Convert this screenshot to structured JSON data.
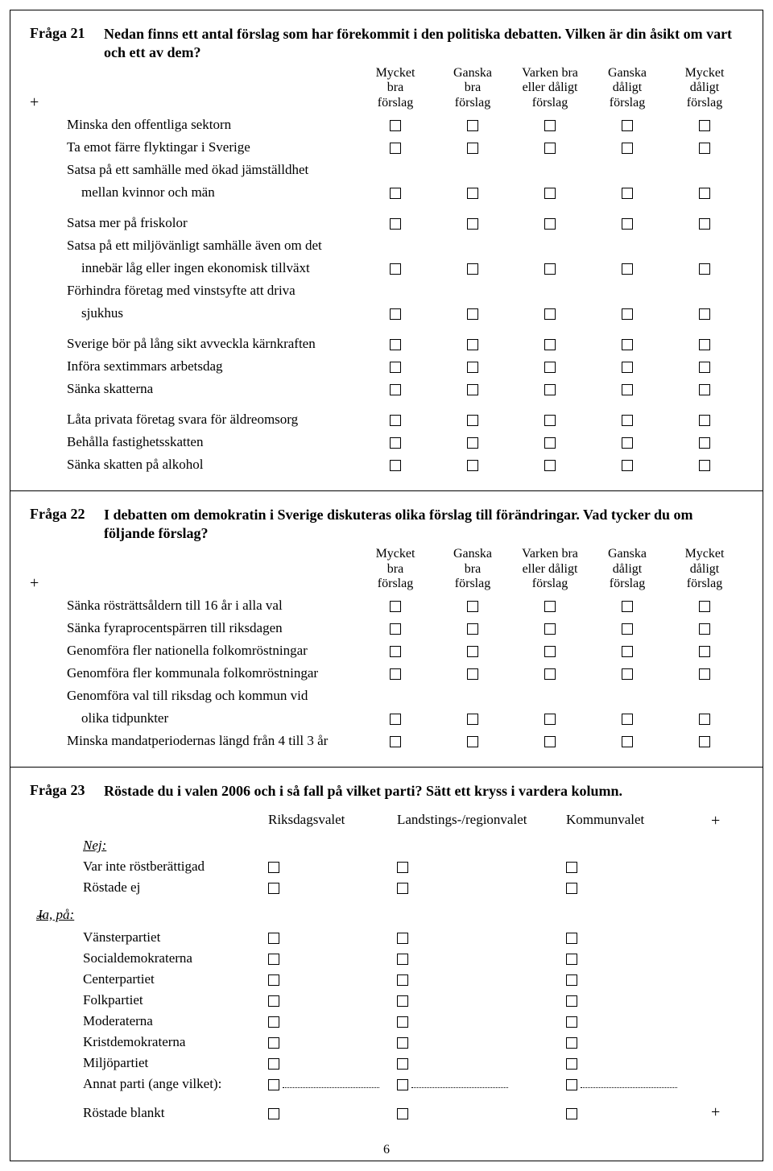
{
  "page_number": "6",
  "colors": {
    "border": "#000000",
    "background": "#ffffff",
    "text": "#000000"
  },
  "q21": {
    "label": "Fråga 21",
    "prompt": "Nedan finns ett antal förslag som har förekommit i den politiska debatten. Vilken är din åsikt om vart och ett av dem?",
    "headers": {
      "c1": "Mycket\nbra\nförslag",
      "c2": "Ganska\nbra\nförslag",
      "c3": "Varken bra\neller dåligt\nförslag",
      "c4": "Ganska\ndåligt\nförslag",
      "c5": "Mycket\ndåligt\nförslag"
    },
    "groups": [
      [
        {
          "text": "Minska den offentliga sektorn"
        },
        {
          "text": "Ta emot färre flyktingar i Sverige"
        },
        {
          "text_a": "Satsa på ett samhälle med ökad jämställdhet",
          "text_b": "mellan kvinnor och män"
        }
      ],
      [
        {
          "text": "Satsa mer på friskolor"
        },
        {
          "text_a": "Satsa på ett miljövänligt samhälle även om det",
          "text_b": "innebär låg eller ingen ekonomisk tillväxt"
        },
        {
          "text_a": "Förhindra företag med vinstsyfte att driva",
          "text_b": "sjukhus"
        }
      ],
      [
        {
          "text": "Sverige bör på lång sikt avveckla kärnkraften"
        },
        {
          "text": "Införa sextimmars arbetsdag"
        },
        {
          "text": "Sänka skatterna"
        }
      ],
      [
        {
          "text": "Låta privata företag svara för äldreomsorg"
        },
        {
          "text": "Behålla fastighetsskatten"
        },
        {
          "text": "Sänka skatten på alkohol"
        }
      ]
    ]
  },
  "q22": {
    "label": "Fråga 22",
    "prompt": "I debatten om demokratin i Sverige diskuteras olika förslag till förändringar. Vad tycker du om följande förslag?",
    "headers": {
      "c1": "Mycket\nbra\nförslag",
      "c2": "Ganska\nbra\nförslag",
      "c3": "Varken bra\neller dåligt\nförslag",
      "c4": "Ganska\ndåligt\nförslag",
      "c5": "Mycket\ndåligt\nförslag"
    },
    "items": [
      {
        "text": "Sänka rösträttsåldern till 16 år i alla val"
      },
      {
        "text": "Sänka fyraprocentspärren till riksdagen"
      },
      {
        "text": "Genomföra fler nationella folkomröstningar"
      },
      {
        "text": "Genomföra fler kommunala folkomröstningar"
      },
      {
        "text_a": "Genomföra val till riksdag och kommun vid",
        "text_b": "olika tidpunkter"
      },
      {
        "text": "Minska mandatperiodernas längd från 4 till 3 år"
      }
    ]
  },
  "q23": {
    "label": "Fråga 23",
    "prompt": "Röstade du i valen 2006 och i så fall på vilket parti? Sätt ett kryss i vardera kolumn.",
    "cols": {
      "c1": "Riksdagsvalet",
      "c2": "Landstings-/regionvalet",
      "c3": "Kommunvalet"
    },
    "nej_label": "Nej:",
    "nej_items": [
      "Var inte röstberättigad",
      "Röstade ej"
    ],
    "ja_label": "Ja,  på:",
    "ja_items": [
      "Vänsterpartiet",
      "Socialdemokraterna",
      "Centerpartiet",
      "Folkpartiet",
      "Moderaterna",
      "Kristdemokraterna",
      "Miljöpartiet",
      "Annat parti (ange vilket):"
    ],
    "blank_item": "Röstade blankt"
  }
}
